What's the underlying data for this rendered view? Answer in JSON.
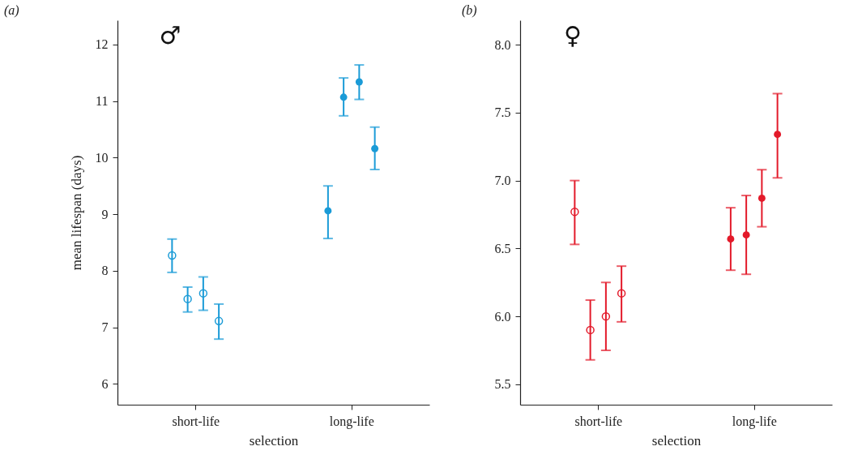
{
  "chart_data": [
    {
      "type": "scatter",
      "title": "(a)",
      "xlabel": "selection",
      "ylabel": "mean lifespan (days)",
      "categories": [
        "short-life",
        "long-life"
      ],
      "ylim": [
        5.63,
        12.43
      ],
      "yticks": [
        6,
        7,
        8,
        9,
        10,
        11,
        12
      ],
      "grid": false,
      "legend": false,
      "marker": "circle",
      "annotations": [
        "♂"
      ],
      "series": [
        {
          "color": "#1a9bd7",
          "x": [
            "short-life",
            "short-life",
            "short-life",
            "short-life"
          ],
          "values": [
            8.27,
            7.5,
            7.6,
            7.11
          ],
          "errors": [
            [
              7.97,
              8.56
            ],
            [
              7.27,
              7.71
            ],
            [
              7.3,
              7.89
            ],
            [
              6.79,
              7.41
            ]
          ]
        },
        {
          "color": "#1a9bd7",
          "x": [
            "long-life",
            "long-life",
            "long-life",
            "long-life"
          ],
          "values": [
            9.06,
            11.07,
            11.34,
            10.16
          ],
          "errors": [
            [
              8.57,
              9.5
            ],
            [
              10.74,
              11.41
            ],
            [
              11.03,
              11.64
            ],
            [
              9.79,
              10.54
            ]
          ]
        }
      ]
    },
    {
      "type": "scatter",
      "title": "(b)",
      "xlabel": "selection",
      "categories": [
        "short-life",
        "long-life"
      ],
      "ylim": [
        5.35,
        8.18
      ],
      "yticks": [
        {
          "value": 5.5,
          "label": "5.5"
        },
        {
          "value": 6,
          "label": "6.0"
        },
        {
          "value": 6.5,
          "label": "6.5"
        },
        {
          "value": 7,
          "label": "7.0"
        },
        {
          "value": 7.5,
          "label": "7.5"
        },
        {
          "value": 8,
          "label": "8.0"
        }
      ],
      "grid": false,
      "legend": false,
      "marker": "circle",
      "annotations": [
        "♀"
      ],
      "series": [
        {
          "color": "#e31a2a",
          "x": [
            "short-life",
            "short-life",
            "short-life",
            "short-life"
          ],
          "values": [
            6.77,
            5.9,
            6.0,
            6.17
          ],
          "errors": [
            [
              6.53,
              7.0
            ],
            [
              5.68,
              6.12
            ],
            [
              5.75,
              6.25
            ],
            [
              5.96,
              6.37
            ]
          ]
        },
        {
          "color": "#e31a2a",
          "x": [
            "long-life",
            "long-life",
            "long-life",
            "long-life"
          ],
          "values": [
            6.57,
            6.6,
            6.87,
            7.34
          ],
          "errors": [
            [
              6.34,
              6.8
            ],
            [
              6.31,
              6.89
            ],
            [
              6.66,
              7.08
            ],
            [
              7.02,
              7.64
            ]
          ]
        }
      ]
    }
  ]
}
